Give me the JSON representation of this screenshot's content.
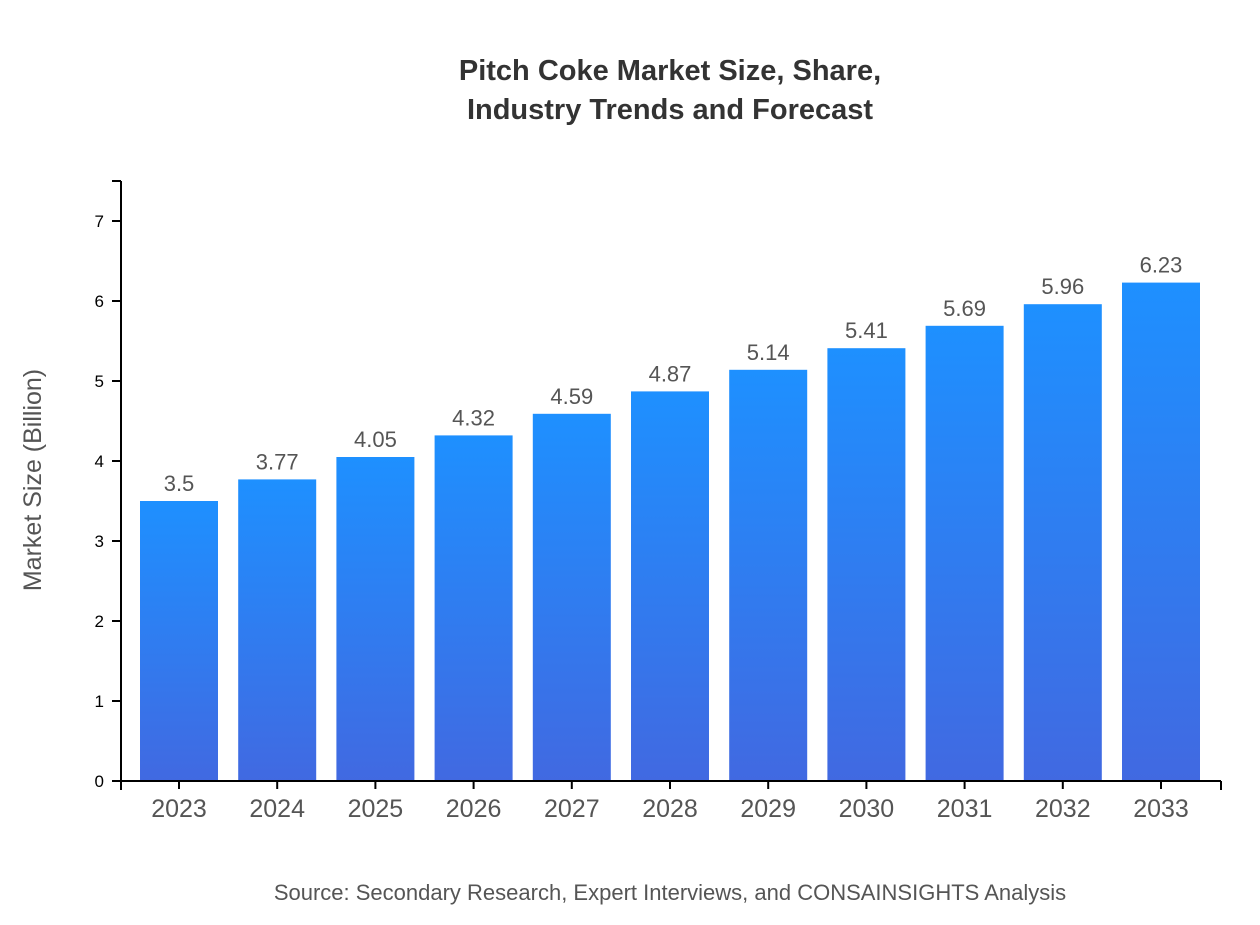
{
  "chart_data": {
    "type": "bar",
    "title_lines": [
      "Pitch Coke Market Size, Share,",
      "Industry Trends and Forecast"
    ],
    "xlabel": "",
    "ylabel": "Market Size (Billion)",
    "categories": [
      "2023",
      "2024",
      "2025",
      "2026",
      "2027",
      "2028",
      "2029",
      "2030",
      "2031",
      "2032",
      "2033"
    ],
    "values": [
      3.5,
      3.77,
      4.05,
      4.32,
      4.59,
      4.87,
      5.14,
      5.41,
      5.69,
      5.96,
      6.23
    ],
    "data_labels": [
      "3.5",
      "3.77",
      "4.05",
      "4.32",
      "4.59",
      "4.87",
      "5.14",
      "5.41",
      "5.69",
      "5.96",
      "6.23"
    ],
    "ylim": [
      0,
      7.5
    ],
    "yticks": [
      0,
      1,
      2,
      3,
      4,
      5,
      6,
      7
    ],
    "grid": false,
    "bar_gradient": {
      "top": "#1e90ff",
      "bottom": "#4169e1"
    },
    "source": "Source: Secondary Research, Expert Interviews, and CONSAINSIGHTS Analysis"
  }
}
